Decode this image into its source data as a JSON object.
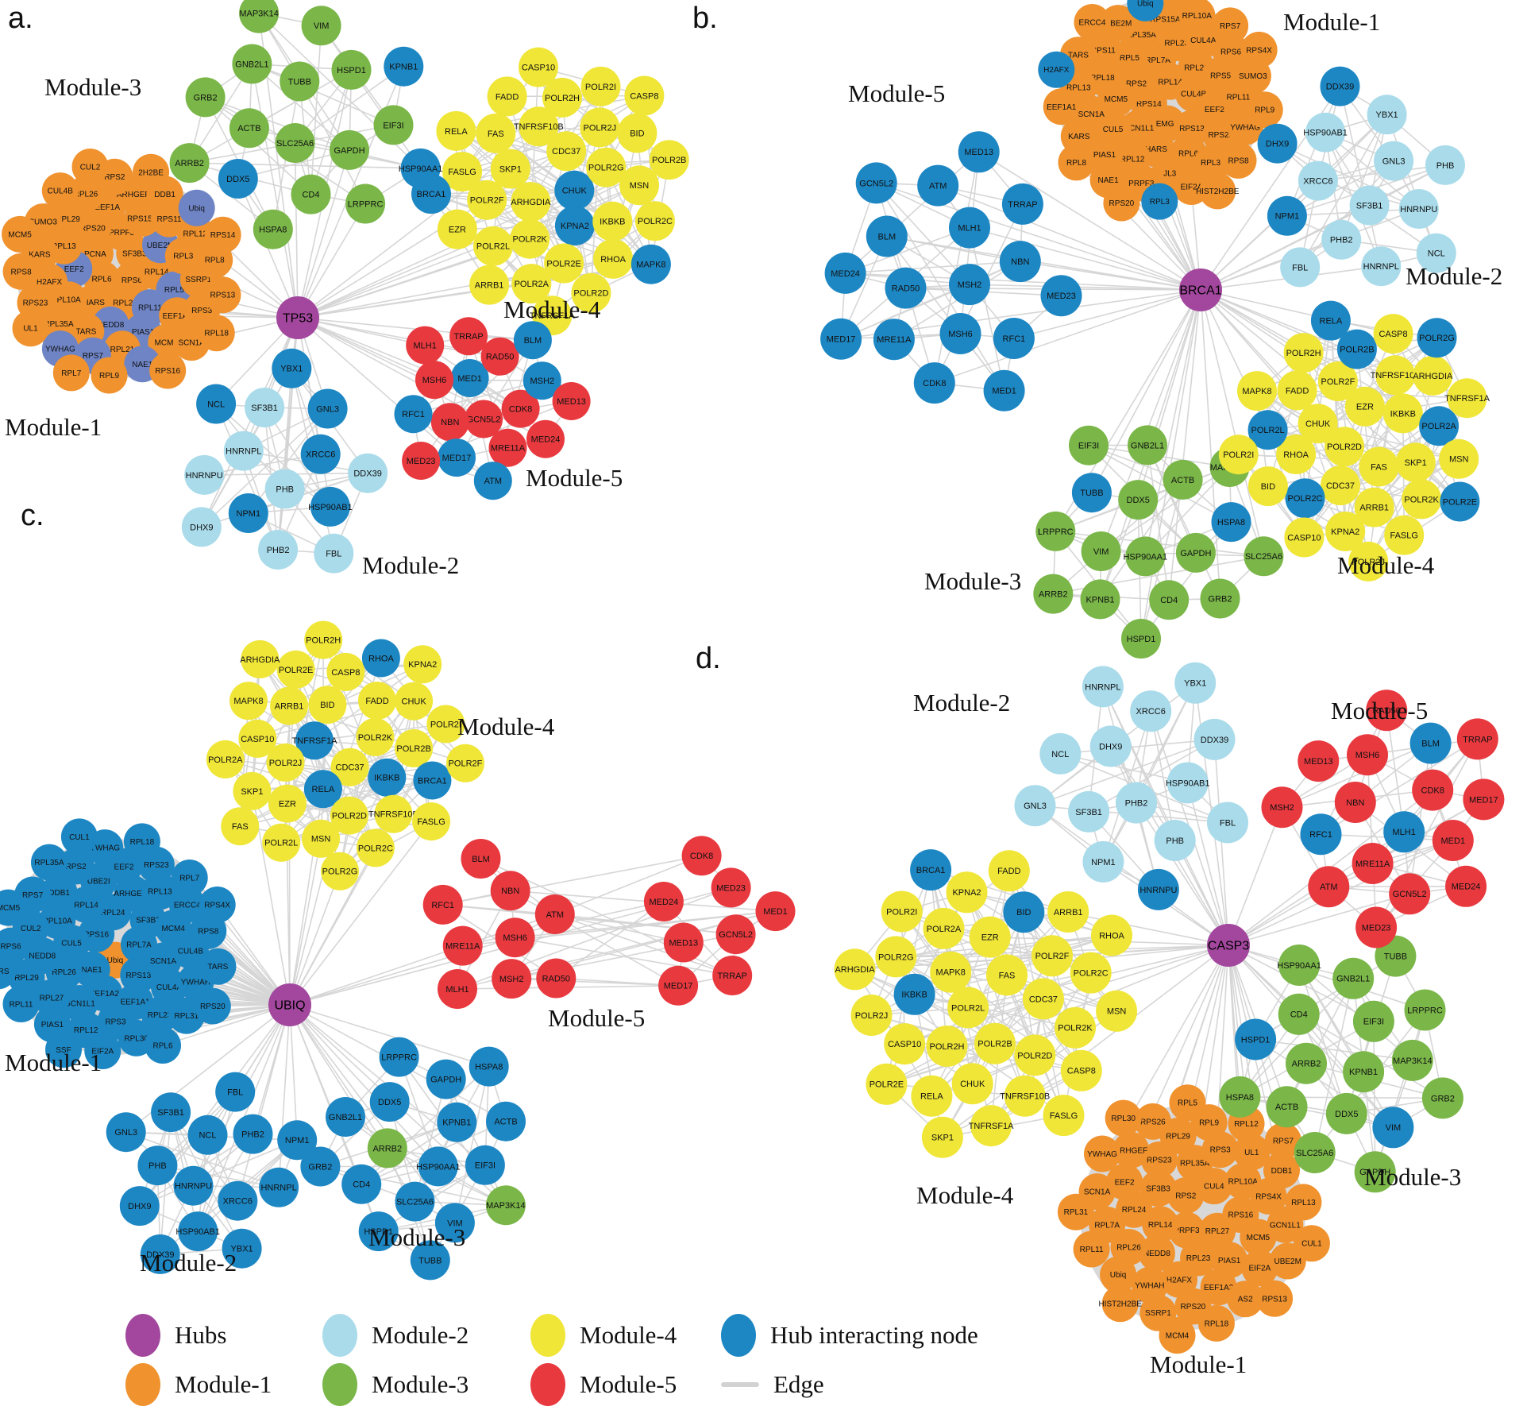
{
  "colors": {
    "hub": "#A2479D",
    "module1": "#F0922E",
    "module2": "#A9DBEA",
    "module3": "#7AB648",
    "module4": "#F0E637",
    "module5": "#E8393F",
    "interact": "#1D87C4",
    "slate": "#6E84C4",
    "edge": "#D2D2D2",
    "underlay": "#D8D8D8",
    "label": "#111111"
  },
  "legend": {
    "rows": [
      {
        "items": [
          {
            "label": "Hubs",
            "color_key": "hub"
          },
          {
            "label": "Module-2",
            "color_key": "module2"
          },
          {
            "label": "Module-4",
            "color_key": "module4"
          },
          {
            "label": "Hub interacting node",
            "color_key": "interact"
          }
        ]
      },
      {
        "items": [
          {
            "label": "Module-1",
            "color_key": "module1"
          },
          {
            "label": "Module-3",
            "color_key": "module3"
          },
          {
            "label": "Module-5",
            "color_key": "module5"
          },
          {
            "label": "Edge",
            "color_key": "edge",
            "swatch": "line"
          }
        ]
      }
    ]
  },
  "panels": [
    {
      "id": "a",
      "letter": "a.",
      "hub": "TP53",
      "modules": [
        {
          "key": "m1",
          "label": "Module-1",
          "color_key": "module1",
          "nodes": [
            "RPS6",
            "RPL6",
            "SF3B3",
            "RPL23",
            "PCNA",
            "RPL14",
            "HARS",
            "PRPF3",
            [
              "RPL11",
              "slate"
            ],
            [
              "EEF2",
              "slate"
            ],
            [
              "UBE2M",
              "slate"
            ],
            [
              "NEDD8",
              "slate"
            ],
            "RPS20",
            [
              "RPL5",
              "slate"
            ],
            "PL10A",
            "RPS15A",
            [
              "PIAS1",
              "slate"
            ],
            "RPL13",
            "RPL3",
            "TARS",
            "EEF1A",
            "EEF1A2",
            "H2AFX",
            "RPS11",
            "RPL21",
            "RPL29",
            "SSRP1",
            "RPL35A",
            "ARHGEF",
            "MCM4",
            "KARS",
            "RPL12",
            [
              "RPS7",
              "slate"
            ],
            "RPL26",
            "RPS3",
            "RPS23",
            "DDB1",
            [
              "NAE1",
              "slate"
            ],
            "SUMO3",
            "RPL8",
            [
              "YWHAG",
              "slate"
            ],
            "RPS2",
            "SCN1A",
            "RPS8",
            [
              "Ubiq",
              "slate"
            ],
            "RPL9",
            "CUL4B",
            "RPS13",
            "UL1",
            "2H2BE",
            "RPS16",
            "MCM5",
            "RPS14",
            "RPL7",
            "CUL2",
            "RPL18"
          ]
        },
        {
          "key": "m2",
          "label": "Module-2",
          "color_key": "module2",
          "nodes": [
            "PHB",
            "HNRNPL",
            [
              "XRCC6",
              "interact"
            ],
            [
              "NPM1",
              "interact"
            ],
            "SF3B1",
            [
              "HSP90AB1",
              "interact"
            ],
            "HNRNPU",
            [
              "GNL3",
              "interact"
            ],
            "PHB2",
            [
              "NCL",
              "interact"
            ],
            "DDX39",
            "DHX9",
            [
              "YBX1",
              "interact"
            ],
            "FBL"
          ]
        },
        {
          "key": "m3",
          "label": "Module-3",
          "color_key": "module3",
          "nodes": [
            "SLC25A6",
            "TUBB",
            "GAPDH",
            "ACTB",
            "HSPD1",
            "CD4",
            "GNB2L1",
            "EIF3I",
            [
              "DDX5",
              "interact"
            ],
            "VIM",
            "LRPPRC",
            "GRB2",
            [
              "KPNB1",
              "interact"
            ],
            "HSPA8",
            "MAP3K14",
            [
              "HSP90AA1",
              "interact"
            ],
            "ARRB2"
          ]
        },
        {
          "key": "m4",
          "label": "Module-4",
          "color_key": "module4",
          "nodes": [
            [
              "CHUK",
              "interact"
            ],
            "ARHGDIA",
            "CDC37",
            [
              "KPNA2",
              "interact"
            ],
            "SKP1",
            "POLR2G",
            "POLR2K",
            "TNFRSF10B",
            "IKBKB",
            "POLR2F",
            "POLR2J",
            "POLR2E",
            "FAS",
            "MSN",
            "POLR2L",
            "POLR2H",
            "RHOA",
            "FASLG",
            "BID",
            "POLR2A",
            "FADD",
            "POLR2C",
            "EZR",
            "POLR2I",
            "POLR2D",
            "RELA",
            "POLR2B",
            "ARRB1",
            "CASP10",
            [
              "MAPK8",
              "interact"
            ],
            [
              "BRCA1",
              "interact"
            ],
            "CASP8",
            "TNFRSF1A"
          ]
        },
        {
          "key": "m5",
          "label": "Module-5",
          "color_key": "module5",
          "nodes": [
            "GCN5L2",
            [
              "MED1",
              "interact"
            ],
            "CDK8",
            "NBN",
            "RAD50",
            "MRE11A",
            "MSH6",
            [
              "MSH2",
              "interact"
            ],
            [
              "MED17",
              "interact"
            ],
            "TRRAP",
            "MED24",
            [
              "RFC1",
              "interact"
            ],
            [
              "BLM",
              "interact"
            ],
            [
              "ATM",
              "interact"
            ],
            "MLH1",
            "MED13",
            "MED23"
          ]
        }
      ]
    },
    {
      "id": "b",
      "letter": "b.",
      "hub": "BRCA1",
      "modules": [
        {
          "key": "m1",
          "label": "Module-1",
          "color_key": "module1",
          "nodes": [
            "RPS14",
            "RPL14",
            "EMG1",
            "RPS2",
            "CUL4B",
            "GCN1L1",
            "RPL7A",
            "RPS13",
            "MCM5",
            "RPL21",
            "HARS",
            "RPL5",
            "EEF2",
            "CUL5",
            "RPL23",
            "RPL6",
            "RPL18",
            "RPS5",
            "RPL12",
            "RPL35A",
            "RPS23",
            "SCN1A",
            "CUL4A",
            "JL3",
            "RPS11",
            "RPL11",
            "PIAS1",
            "RPS15A",
            "RPL30",
            "RPL13",
            "RPS6",
            "PRPF3",
            "UBE2M",
            "YWHAG",
            "KARS",
            "RPL10A",
            "EIF2A",
            "TARS",
            "SUMO3",
            "NAE1",
            [
              "Ubiq",
              "interact"
            ],
            "RPS8",
            "EEF1A1",
            "RPS7",
            [
              "RPL3",
              "interact"
            ],
            "ERCC4",
            "RPL9",
            "RPL8",
            "PIAS2",
            "HIST2H2BE",
            [
              "H2AFX",
              "interact"
            ],
            "RPS4X",
            "RPS20"
          ]
        },
        {
          "key": "m2",
          "label": "Module-2",
          "color_key": "module2",
          "nodes": [
            "SF3B1",
            "XRCC6",
            "GNL3",
            "PHB2",
            "HSP90AB1",
            "HNRNPU",
            [
              "NPM1",
              "interact"
            ],
            "YBX1",
            "HNRNPL",
            [
              "DHX9",
              "interact"
            ],
            "PHB",
            "FBL",
            [
              "DDX39",
              "interact"
            ],
            "NCL"
          ]
        },
        {
          "key": "m3",
          "label": "Module-3",
          "color_key": "module3",
          "nodes": [
            "HSP90AA1",
            "DDX5",
            "GAPDH",
            "VIM",
            "ACTB",
            "CD4",
            [
              "TUBB",
              "interact"
            ],
            [
              "HSPA8",
              "interact"
            ],
            "KPNB1",
            "GNB2L1",
            "GRB2",
            "LRPPRC",
            "MAP3K14",
            "HSPD1",
            "EIF3I",
            "SLC25A6",
            "ARRB2"
          ]
        },
        {
          "key": "m4",
          "label": "Module-4",
          "color_key": "module4",
          "nodes": [
            "POLR2D",
            "EZR",
            "FAS",
            "CHUK",
            "IKBKB",
            "CDC37",
            "POLR2F",
            "SKP1",
            "RHOA",
            "TNFRSF10B",
            "ARRB1",
            "FADD",
            [
              "POLR2A",
              "interact"
            ],
            [
              "POLR2C",
              "interact"
            ],
            [
              "POLR2B",
              "interact"
            ],
            "POLR2K",
            [
              "POLR2L",
              "interact"
            ],
            "ARHGDIA",
            "KPNA2",
            "POLR2H",
            "MSN",
            "BID",
            "CASP8",
            "FASLG",
            "MAPK8",
            "TNFRSF1A",
            "CASP10",
            [
              "RELA",
              "interact"
            ],
            [
              "POLR2E",
              "interact"
            ],
            "POLR2I",
            [
              "POLR2G",
              "interact"
            ],
            "POLR2J"
          ]
        },
        {
          "key": "m5",
          "label": "Module-5",
          "color_key": "interact",
          "nodes": [
            "MSH2",
            "RAD50",
            "MLH1",
            "MSH6",
            "BLM",
            "NBN",
            "MRE11A",
            "ATM",
            "RFC1",
            "MED24",
            "TRRAP",
            "CDK8",
            "GCN5L2",
            "MED23",
            "MED17",
            "MED13",
            "MED1"
          ]
        }
      ]
    },
    {
      "id": "c",
      "letter": "c.",
      "hub": "UBIQ",
      "modules": [
        {
          "key": "m1",
          "label": "Module-1",
          "color_key": "interact",
          "nodes": [
            [
              "Ubiq",
              "module1"
            ],
            "RPS16",
            "RPL7A",
            "NAE1",
            "RPL24",
            "RPS13",
            "CUL5",
            "SF3B3",
            "EEF1A2",
            "RPL14",
            "SCN1A",
            "RPL26",
            "ARHGEF4",
            "EEF1A1",
            "RPL10A",
            "MCM4",
            "GCN1L1",
            "UBE2I",
            "CUL4A",
            "NEDD8",
            "RPL13",
            "RPS3",
            "DDB1",
            "CUL4B",
            "RPL27",
            "EEF2",
            "RPL23",
            "CUL2",
            "ERCC4",
            "RPL12",
            "RPS2",
            "YWHAH",
            "RPL29",
            "RPS23",
            "RPL30",
            "RPS7",
            "RPS8",
            "PIAS1",
            "YWHAG",
            "RPL31",
            "RPS6",
            "RPL7",
            "EIF2A",
            "RPL35A",
            "TARS",
            "RPL11",
            "RPL18",
            "RPL6",
            "MCM5",
            "RPS4X",
            "SSF",
            "CUL1",
            "RPS20",
            "HARS"
          ]
        },
        {
          "key": "m2",
          "label": "Module-2",
          "color_key": "interact",
          "nodes": [
            "HNRNPU",
            "NCL",
            "XRCC6",
            "PHB",
            "PHB2",
            "HSP90AB1",
            "SF3B1",
            "HNRNPL",
            "DHX9",
            "FBL",
            "YBX1",
            "GNL3",
            "NPM1",
            "DDX39"
          ]
        },
        {
          "key": "m3",
          "label": "Module-3",
          "color_key": "interact",
          "nodes": [
            "HSP90AA1",
            [
              "ARRB2",
              "module3"
            ],
            "KPNB1",
            "SLC25A6",
            "DDX5",
            "EIF3I",
            "CD4",
            "GAPDH",
            "VIM",
            "GNB2L1",
            "ACTB",
            "HSPD1",
            "LRPPRC",
            [
              "MAP3K14",
              "module3"
            ],
            "GRB2",
            "HSPA8",
            "TUBB"
          ]
        },
        {
          "key": "m4",
          "label": "Module-4",
          "color_key": "module4",
          "nodes": [
            "CDC37",
            [
              "TNFRSF1A",
              "interact"
            ],
            "POLR2K",
            [
              "RELA",
              "interact"
            ],
            "BID",
            [
              "IKBKB",
              "interact"
            ],
            "POLR2J",
            "FADD",
            "POLR2D",
            "ARRB1",
            "POLR2B",
            "EZR",
            "CASP8",
            "TNFRSF10B",
            "CASP10",
            "CHUK",
            "MSN",
            "POLR2E",
            [
              "BRCA1",
              "interact"
            ],
            "SKP1",
            [
              "RHOA",
              "interact"
            ],
            "POLR2C",
            "MAPK8",
            "POLR2I",
            "POLR2L",
            "POLR2H",
            "FASLG",
            "POLR2A",
            "KPNA2",
            "POLR2G",
            "ARHGDIA",
            "POLR2F",
            "FAS"
          ]
        },
        {
          "key": "m5",
          "label": "Module-5",
          "color_key": "module5",
          "nodes": [
            "MSH6",
            "MRE11A",
            "NBN",
            "MSH2",
            "RFC1",
            "ATM",
            "MLH1",
            "BLM",
            "RAD50",
            "GCN5L2",
            "MED13",
            "MED23",
            "TRRAP",
            "MED24",
            "MED1",
            "MED17",
            "CDK8"
          ]
        }
      ]
    },
    {
      "id": "d",
      "letter": "d.",
      "hub": "CASP3",
      "modules": [
        {
          "key": "m1",
          "label": "Module-1",
          "color_key": "module1",
          "nodes": [
            "PRPF3",
            "RPS2",
            "RPL27",
            "RPL14",
            "CUL4",
            "RPL23",
            "SF3B3",
            "RPS16",
            "NEDD8",
            "RPL35A",
            "PIAS1",
            "RPL24",
            "RPL10A",
            "H2AFX",
            "RPS23",
            "MCM5",
            "RPL26",
            "RPS3",
            "EEF1A2",
            "EEF2",
            "RPS4X",
            "YWHAH",
            "RPL29",
            "EIF2A",
            "RPL7A",
            "UL1",
            "RPS20",
            "ARHGEF",
            "GCN1L1",
            "Ubiq",
            "RPL9",
            "AS2",
            "SCN1A",
            "DDB1",
            "SSRP1",
            "RPS26",
            "UBE2M",
            "RPL11",
            "RPL12",
            "RPL18",
            "YWHAG",
            "RPL13",
            "HIST2H2BE",
            "RPL5",
            "RPS13",
            "RPL31",
            "RPS7",
            "MCM4",
            "RPL30",
            "CUL1"
          ]
        },
        {
          "key": "m2",
          "label": "Module-2",
          "color_key": "module2",
          "nodes": [
            "PHB2",
            "DHX9",
            "HSP90AB1",
            "SF3B1",
            "XRCC6",
            "PHB",
            "NCL",
            "DDX39",
            "NPM1",
            "HNRNPL",
            "FBL",
            "GNL3",
            "YBX1",
            [
              "HNRNPU",
              "interact"
            ]
          ]
        },
        {
          "key": "m3",
          "label": "Module-3",
          "color_key": "module3",
          "nodes": [
            "KPNB1",
            "ARRB2",
            "EIF3I",
            "DDX5",
            "CD4",
            "MAP3K14",
            "ACTB",
            "GNB2L1",
            [
              "VIM",
              "interact"
            ],
            [
              "HSPD1",
              "interact"
            ],
            "LRPPRC",
            "SLC25A6",
            "HSP90AA1",
            "GRB2",
            "HSPA8",
            "TUBB",
            "GAPDH"
          ]
        },
        {
          "key": "m4",
          "label": "Module-4",
          "color_key": "module4",
          "nodes": [
            "POLR2L",
            "FAS",
            "POLR2B",
            "MAPK8",
            "CDC37",
            "POLR2H",
            "EZR",
            "POLR2D",
            [
              "IKBKB",
              "interact"
            ],
            "POLR2F",
            "CHUK",
            "POLR2A",
            "POLR2K",
            "CASP10",
            [
              "BID",
              "interact"
            ],
            "TNFRSF10B",
            "POLR2G",
            "POLR2C",
            "RELA",
            "KPNA2",
            "CASP8",
            "POLR2J",
            "ARRB1",
            "TNFRSF1A",
            "POLR2I",
            "MSN",
            "POLR2E",
            "FADD",
            "FASLG",
            "ARHGDIA",
            "RHOA",
            "SKP1",
            [
              "BRCA1",
              "interact"
            ]
          ]
        },
        {
          "key": "m5",
          "label": "Module-5",
          "color_key": "module5",
          "nodes": [
            [
              "MLH1",
              "interact"
            ],
            "NBN",
            "CDK8",
            "MRE11A",
            "MSH6",
            "MED1",
            [
              "RFC1",
              "interact"
            ],
            [
              "BLM",
              "interact"
            ],
            "GCN5L2",
            "MED13",
            "MED17",
            "ATM",
            "RAD50",
            "MED24",
            "MSH2",
            "TRRAP",
            "MED23"
          ]
        }
      ]
    }
  ]
}
